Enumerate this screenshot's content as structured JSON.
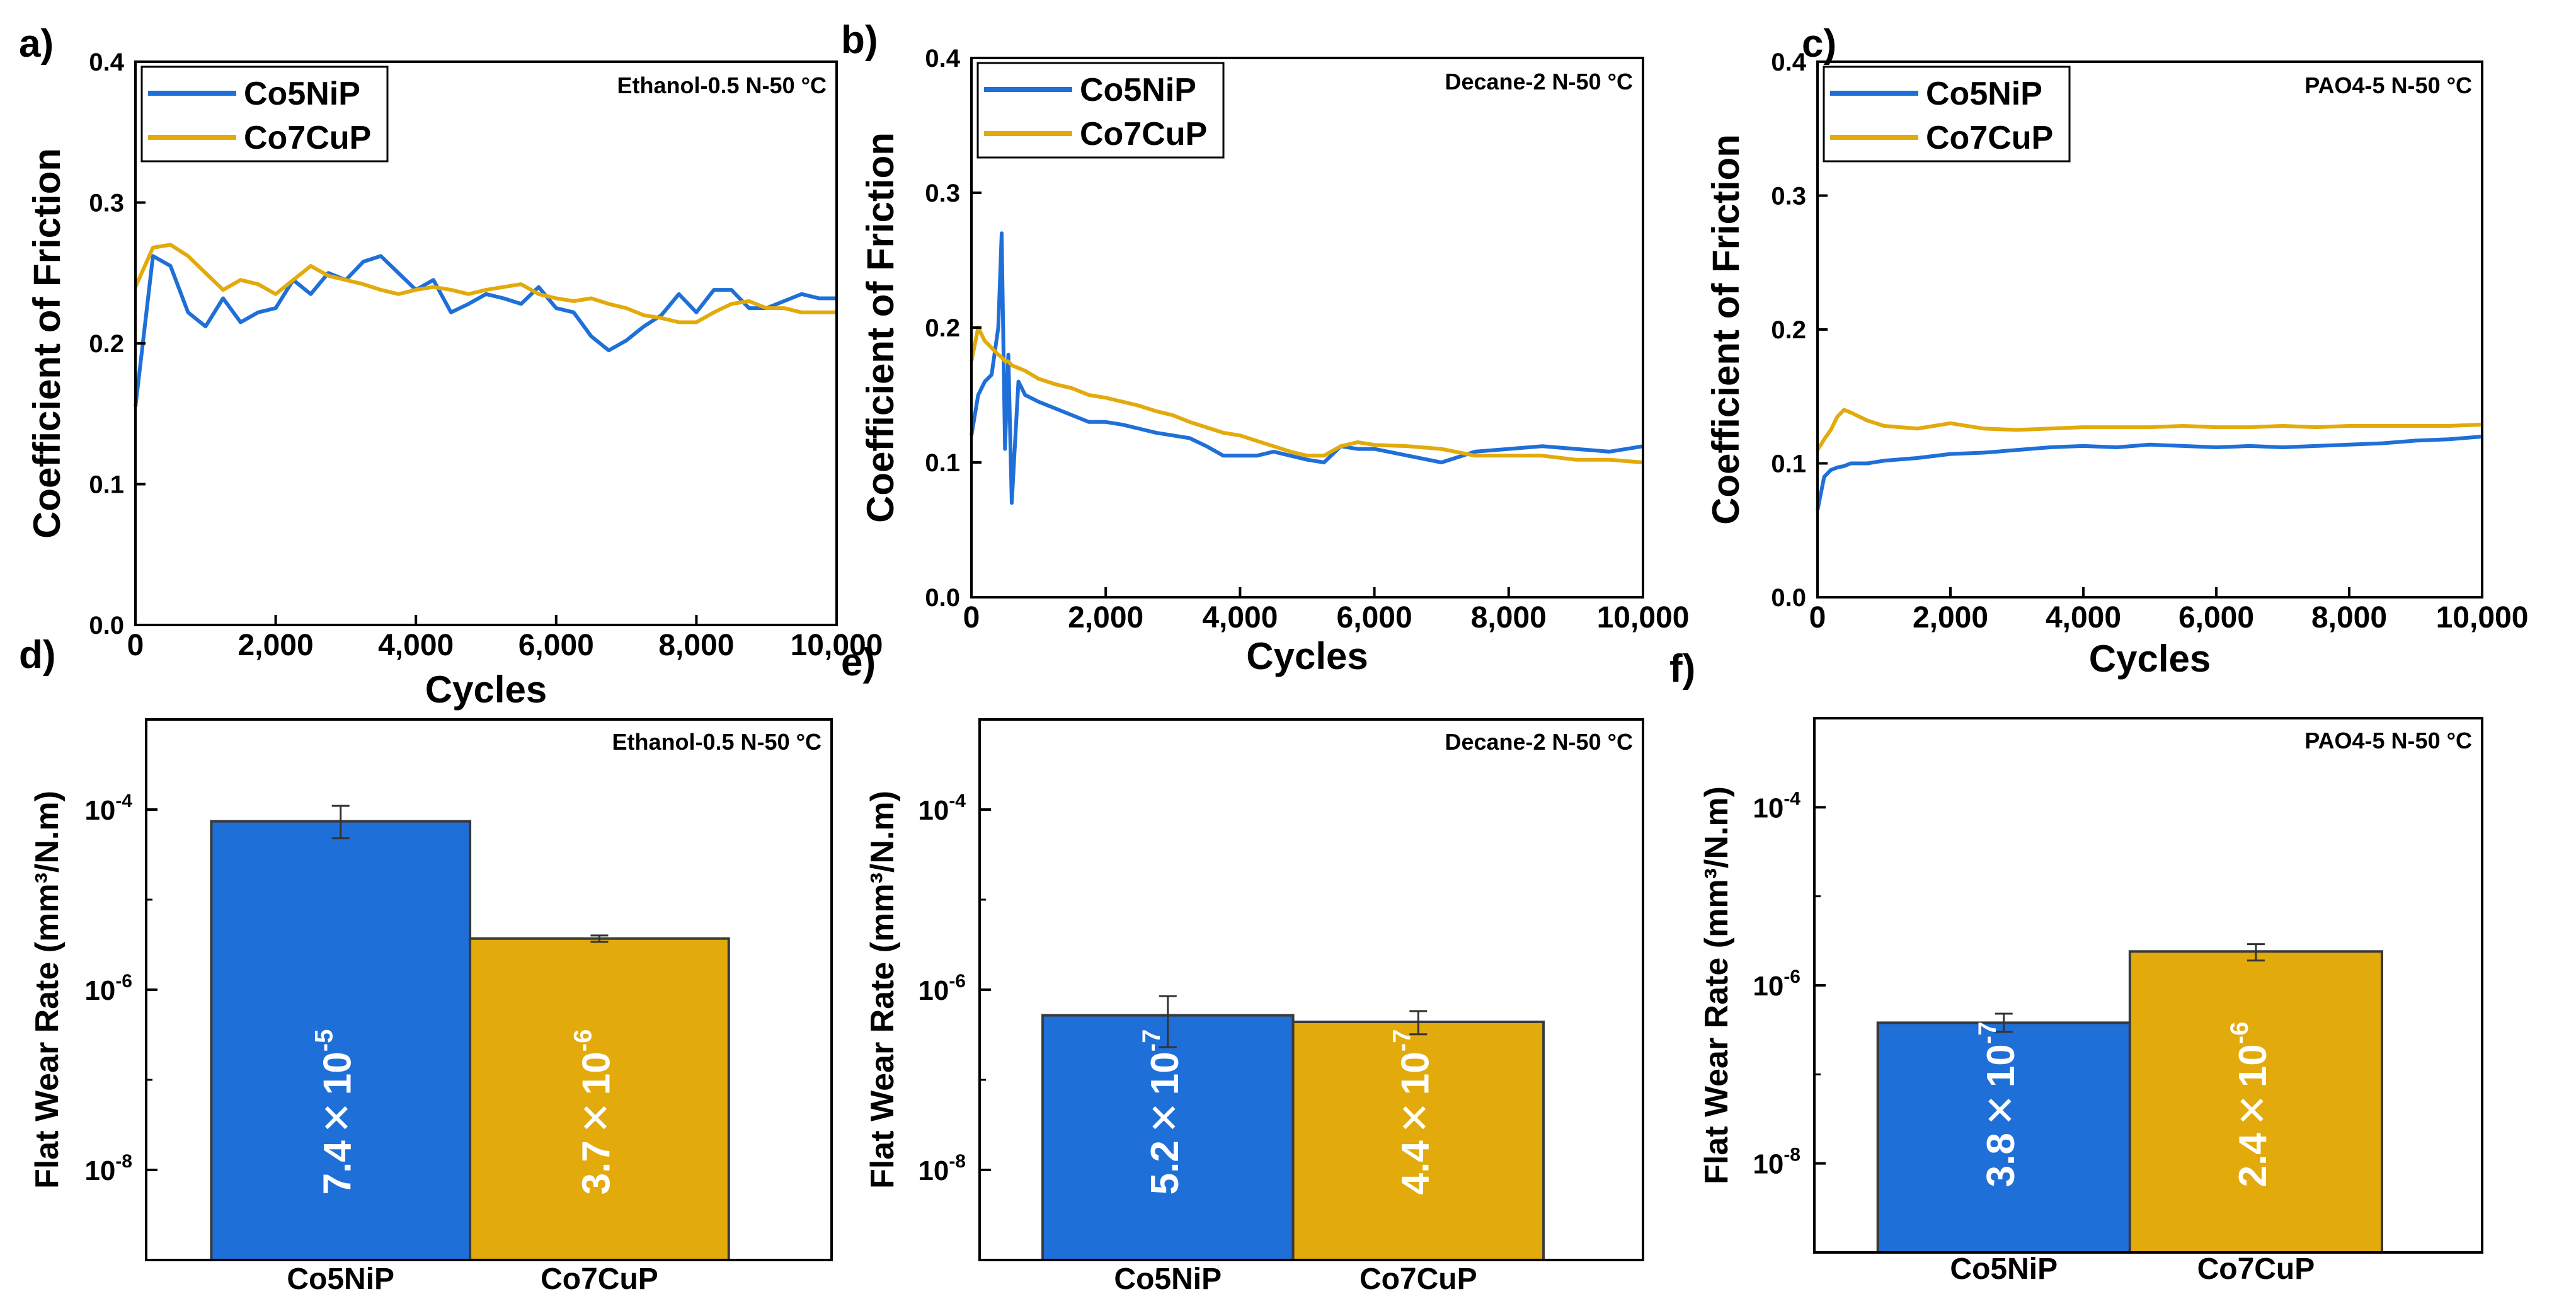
{
  "colors": {
    "series1": "#1f6fd8",
    "series2": "#e2aa0b",
    "axis": "#000000"
  },
  "chart_data": [
    {
      "type": "line",
      "panel_label": "a)",
      "title": "Ethanol-0.5 N-50 ",
      "title_unit": "°C",
      "xlabel": "Cycles",
      "ylabel": "Coefficient of Friction",
      "xlim": [
        0,
        10000
      ],
      "ylim": [
        0,
        0.4
      ],
      "x_ticks": [
        0,
        2000,
        4000,
        6000,
        8000,
        10000
      ],
      "x_tick_labels": [
        "0",
        "2,000",
        "4,000",
        "6,000",
        "8,000",
        "10,000"
      ],
      "y_ticks": [
        0,
        0.1,
        0.2,
        0.3,
        0.4
      ],
      "y_tick_labels": [
        "0.0",
        "0.1",
        "0.2",
        "0.3",
        "0.4"
      ],
      "legend": "top-left",
      "x": [
        0,
        250,
        500,
        750,
        1000,
        1250,
        1500,
        1750,
        2000,
        2250,
        2500,
        2750,
        3000,
        3250,
        3500,
        3750,
        4000,
        4250,
        4500,
        4750,
        5000,
        5250,
        5500,
        5750,
        6000,
        6250,
        6500,
        6750,
        7000,
        7250,
        7500,
        7750,
        8000,
        8250,
        8500,
        8750,
        9000,
        9250,
        9500,
        9750,
        10000
      ],
      "series": [
        {
          "name": "Co5NiP",
          "values": [
            0.155,
            0.262,
            0.255,
            0.222,
            0.212,
            0.232,
            0.215,
            0.222,
            0.225,
            0.245,
            0.235,
            0.25,
            0.245,
            0.258,
            0.262,
            0.25,
            0.238,
            0.245,
            0.222,
            0.228,
            0.235,
            0.232,
            0.228,
            0.24,
            0.225,
            0.222,
            0.205,
            0.195,
            0.202,
            0.212,
            0.22,
            0.235,
            0.222,
            0.238,
            0.238,
            0.225,
            0.225,
            0.23,
            0.235,
            0.232,
            0.232
          ]
        },
        {
          "name": "Co7CuP",
          "values": [
            0.24,
            0.268,
            0.27,
            0.262,
            0.25,
            0.238,
            0.245,
            0.242,
            0.235,
            0.245,
            0.255,
            0.248,
            0.245,
            0.242,
            0.238,
            0.235,
            0.238,
            0.24,
            0.238,
            0.235,
            0.238,
            0.24,
            0.242,
            0.235,
            0.232,
            0.23,
            0.232,
            0.228,
            0.225,
            0.22,
            0.218,
            0.215,
            0.215,
            0.222,
            0.228,
            0.23,
            0.225,
            0.225,
            0.222,
            0.222,
            0.222
          ]
        }
      ]
    },
    {
      "type": "line",
      "panel_label": "b)",
      "title": "Decane-2 N-50 ",
      "title_unit": "°C",
      "xlabel": "Cycles",
      "ylabel": "Coefficient of Friction",
      "xlim": [
        0,
        10000
      ],
      "ylim": [
        0,
        0.4
      ],
      "x_ticks": [
        0,
        2000,
        4000,
        6000,
        8000,
        10000
      ],
      "x_tick_labels": [
        "0",
        "2,000",
        "4,000",
        "6,000",
        "8,000",
        "10,000"
      ],
      "y_ticks": [
        0,
        0.1,
        0.2,
        0.3,
        0.4
      ],
      "y_tick_labels": [
        "0.0",
        "0.1",
        "0.2",
        "0.3",
        "0.4"
      ],
      "legend": "top-left",
      "x": [
        0,
        100,
        200,
        300,
        400,
        450,
        500,
        550,
        600,
        700,
        800,
        1000,
        1250,
        1500,
        1750,
        2000,
        2250,
        2500,
        2750,
        3000,
        3250,
        3500,
        3750,
        4000,
        4250,
        4500,
        4750,
        5000,
        5250,
        5500,
        5750,
        6000,
        6500,
        7000,
        7500,
        8000,
        8500,
        9000,
        9500,
        10000
      ],
      "series": [
        {
          "name": "Co5NiP",
          "values": [
            0.12,
            0.15,
            0.16,
            0.165,
            0.2,
            0.27,
            0.11,
            0.18,
            0.07,
            0.16,
            0.15,
            0.145,
            0.14,
            0.135,
            0.13,
            0.13,
            0.128,
            0.125,
            0.122,
            0.12,
            0.118,
            0.112,
            0.105,
            0.105,
            0.105,
            0.108,
            0.105,
            0.102,
            0.1,
            0.112,
            0.11,
            0.11,
            0.105,
            0.1,
            0.108,
            0.11,
            0.112,
            0.11,
            0.108,
            0.112
          ]
        },
        {
          "name": "Co7CuP",
          "values": [
            0.175,
            0.2,
            0.19,
            0.185,
            0.18,
            0.178,
            0.175,
            0.175,
            0.172,
            0.17,
            0.168,
            0.162,
            0.158,
            0.155,
            0.15,
            0.148,
            0.145,
            0.142,
            0.138,
            0.135,
            0.13,
            0.126,
            0.122,
            0.12,
            0.116,
            0.112,
            0.108,
            0.105,
            0.105,
            0.112,
            0.115,
            0.113,
            0.112,
            0.11,
            0.105,
            0.105,
            0.105,
            0.102,
            0.102,
            0.1
          ]
        }
      ]
    },
    {
      "type": "line",
      "panel_label": "c)",
      "title": "PAO4-5 N-50 ",
      "title_unit": "°C",
      "xlabel": "Cycles",
      "ylabel": "Coefficient of Friction",
      "xlim": [
        0,
        10000
      ],
      "ylim": [
        0,
        0.4
      ],
      "x_ticks": [
        0,
        2000,
        4000,
        6000,
        8000,
        10000
      ],
      "x_tick_labels": [
        "0",
        "2,000",
        "4,000",
        "6,000",
        "8,000",
        "10,000"
      ],
      "y_ticks": [
        0,
        0.1,
        0.2,
        0.3,
        0.4
      ],
      "y_tick_labels": [
        "0.0",
        "0.1",
        "0.2",
        "0.3",
        "0.4"
      ],
      "legend": "top-left",
      "x": [
        0,
        100,
        200,
        300,
        400,
        500,
        750,
        1000,
        1500,
        2000,
        2500,
        3000,
        3500,
        4000,
        4500,
        5000,
        5500,
        6000,
        6500,
        7000,
        7500,
        8000,
        8500,
        9000,
        9500,
        10000
      ],
      "series": [
        {
          "name": "Co5NiP",
          "values": [
            0.065,
            0.09,
            0.095,
            0.097,
            0.098,
            0.1,
            0.1,
            0.102,
            0.104,
            0.107,
            0.108,
            0.11,
            0.112,
            0.113,
            0.112,
            0.114,
            0.113,
            0.112,
            0.113,
            0.112,
            0.113,
            0.114,
            0.115,
            0.117,
            0.118,
            0.12
          ]
        },
        {
          "name": "Co7CuP",
          "values": [
            0.11,
            0.118,
            0.125,
            0.135,
            0.14,
            0.138,
            0.132,
            0.128,
            0.126,
            0.13,
            0.126,
            0.125,
            0.126,
            0.127,
            0.127,
            0.127,
            0.128,
            0.127,
            0.127,
            0.128,
            0.127,
            0.128,
            0.128,
            0.128,
            0.128,
            0.129
          ]
        }
      ]
    },
    {
      "type": "bar",
      "panel_label": "d)",
      "title": "Ethanol-0.5 N-50 ",
      "title_unit": "°C",
      "ylabel": "Flat Wear Rate (mm³/N.m)",
      "yscale": "log",
      "ylim": [
        1e-09,
        0.001
      ],
      "y_ticks": [
        0.0001,
        1e-06,
        1e-08
      ],
      "y_tick_labels": [
        {
          "base": "10",
          "exp": "-4"
        },
        {
          "base": "10",
          "exp": "-6"
        },
        {
          "base": "10",
          "exp": "-8"
        }
      ],
      "categories": [
        "Co5NiP",
        "Co7CuP"
      ],
      "values": [
        7.4e-05,
        3.7e-06
      ],
      "errors": [
        [
          4.8e-05,
          0.00011
        ],
        [
          3.4e-06,
          4e-06
        ]
      ],
      "data_labels": [
        {
          "mantissa": "7.4",
          "times": "✕",
          "base": "10",
          "exp": "-5"
        },
        {
          "mantissa": "3.7",
          "times": "✕",
          "base": "10",
          "exp": "-6"
        }
      ]
    },
    {
      "type": "bar",
      "panel_label": "e)",
      "title": "Decane-2 N-50 ",
      "title_unit": "°C",
      "ylabel": "Flat Wear Rate (mm³/N.m)",
      "yscale": "log",
      "ylim": [
        1e-09,
        0.001
      ],
      "y_ticks": [
        0.0001,
        1e-06,
        1e-08
      ],
      "y_tick_labels": [
        {
          "base": "10",
          "exp": "-4"
        },
        {
          "base": "10",
          "exp": "-6"
        },
        {
          "base": "10",
          "exp": "-8"
        }
      ],
      "categories": [
        "Co5NiP",
        "Co7CuP"
      ],
      "values": [
        5.2e-07,
        4.4e-07
      ],
      "errors": [
        [
          2.3e-07,
          8.5e-07
        ],
        [
          3.2e-07,
          5.8e-07
        ]
      ],
      "data_labels": [
        {
          "mantissa": "5.2",
          "times": "✕",
          "base": "10",
          "exp": "-7"
        },
        {
          "mantissa": "4.4",
          "times": "✕",
          "base": "10",
          "exp": "-7"
        }
      ]
    },
    {
      "type": "bar",
      "panel_label": "f)",
      "title": "PAO4-5 N-50 ",
      "title_unit": "°C",
      "ylabel": "Flat Wear Rate (mm³/N.m)",
      "yscale": "log",
      "ylim": [
        1e-09,
        0.001
      ],
      "y_ticks": [
        0.0001,
        1e-06,
        1e-08
      ],
      "y_tick_labels": [
        {
          "base": "10",
          "exp": "-4"
        },
        {
          "base": "10",
          "exp": "-6"
        },
        {
          "base": "10",
          "exp": "-8"
        }
      ],
      "categories": [
        "Co5NiP",
        "Co7CuP"
      ],
      "values": [
        3.8e-07,
        2.4e-06
      ],
      "errors": [
        [
          3e-07,
          4.8e-07
        ],
        [
          1.9e-06,
          2.9e-06
        ]
      ],
      "data_labels": [
        {
          "mantissa": "3.8",
          "times": "✕",
          "base": "10",
          "exp": "-7"
        },
        {
          "mantissa": "2.4",
          "times": "✕",
          "base": "10",
          "exp": "-6"
        }
      ]
    }
  ]
}
